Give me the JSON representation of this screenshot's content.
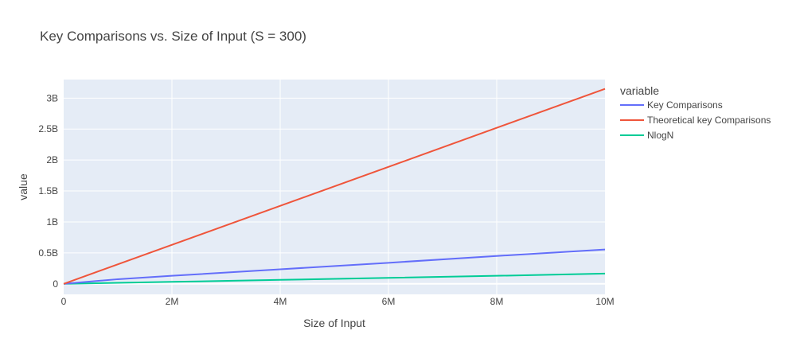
{
  "chart_data": {
    "type": "line",
    "title": "Key Comparisons vs. Size of Input (S = 300)",
    "xlabel": "Size of Input",
    "ylabel": "value",
    "xlim": [
      0,
      10000000
    ],
    "ylim": [
      -170000000,
      3300000000
    ],
    "x_ticks": [
      {
        "value": 0,
        "label": "0"
      },
      {
        "value": 2000000,
        "label": "2M"
      },
      {
        "value": 4000000,
        "label": "4M"
      },
      {
        "value": 6000000,
        "label": "6M"
      },
      {
        "value": 8000000,
        "label": "8M"
      },
      {
        "value": 10000000,
        "label": "10M"
      }
    ],
    "y_ticks": [
      {
        "value": 0,
        "label": "0"
      },
      {
        "value": 500000000,
        "label": "0.5B"
      },
      {
        "value": 1000000000,
        "label": "1B"
      },
      {
        "value": 1500000000,
        "label": "1.5B"
      },
      {
        "value": 2000000000,
        "label": "2B"
      },
      {
        "value": 2500000000,
        "label": "2.5B"
      },
      {
        "value": 3000000000,
        "label": "3B"
      }
    ],
    "grid": true,
    "legend": {
      "title": "variable",
      "placement": "right"
    },
    "series": [
      {
        "name": "Key Comparisons",
        "color": "#636efa",
        "x": [
          0,
          1000000,
          2000000,
          4000000,
          6000000,
          8000000,
          10000000
        ],
        "y": [
          0,
          75000000,
          130000000,
          235000000,
          340000000,
          450000000,
          555000000
        ]
      },
      {
        "name": "Theoretical key Comparisons",
        "color": "#EF553B",
        "x": [
          0,
          10000000
        ],
        "y": [
          0,
          3150000000
        ]
      },
      {
        "name": "NlogN",
        "color": "#00cc96",
        "x": [
          0,
          2000000,
          4000000,
          6000000,
          8000000,
          10000000
        ],
        "y": [
          0,
          32000000,
          64000000,
          97000000,
          130000000,
          165000000
        ]
      }
    ]
  }
}
